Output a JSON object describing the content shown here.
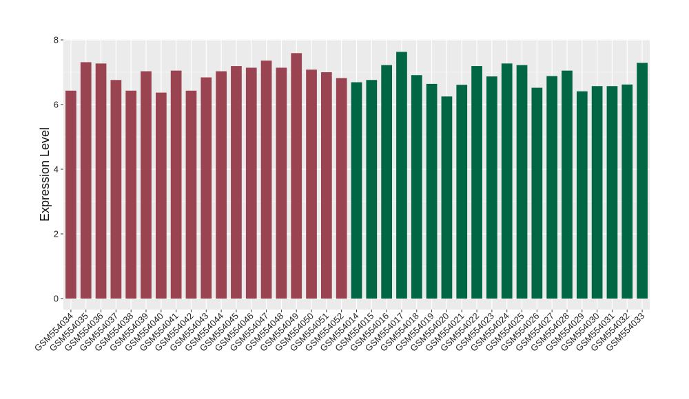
{
  "chart_data": {
    "type": "bar",
    "title": "",
    "xlabel": "",
    "ylabel": "Expression Level",
    "ylim": [
      0,
      8
    ],
    "yticks": [
      0,
      2,
      4,
      6,
      8
    ],
    "grid": true,
    "legend": "none",
    "background_color": "#ebebeb",
    "grid_color": "#ffffff",
    "categories": [
      "GSM554034",
      "GSM554035",
      "GSM554036",
      "GSM554037",
      "GSM554038",
      "GSM554039",
      "GSM554040",
      "GSM554041",
      "GSM554042",
      "GSM554043",
      "GSM554044",
      "GSM554045",
      "GSM554046",
      "GSM554047",
      "GSM554048",
      "GSM554049",
      "GSM554050",
      "GSM554051",
      "GSM554052",
      "GSM554014",
      "GSM554015",
      "GSM554016",
      "GSM554017",
      "GSM554018",
      "GSM554019",
      "GSM554020",
      "GSM554021",
      "GSM554022",
      "GSM554023",
      "GSM554024",
      "GSM554025",
      "GSM554026",
      "GSM554027",
      "GSM554028",
      "GSM554029",
      "GSM554030",
      "GSM554031",
      "GSM554032",
      "GSM554033"
    ],
    "values": [
      6.43,
      7.31,
      7.27,
      6.76,
      6.43,
      7.03,
      6.37,
      7.05,
      6.43,
      6.84,
      7.03,
      7.19,
      7.14,
      7.36,
      7.14,
      7.59,
      7.08,
      7.0,
      6.82,
      6.69,
      6.76,
      7.22,
      7.63,
      6.91,
      6.64,
      6.25,
      6.61,
      7.19,
      6.87,
      7.27,
      7.22,
      6.52,
      6.88,
      7.05,
      6.41,
      6.57,
      6.57,
      6.62,
      7.29
    ],
    "group_colors": [
      "#9b4451",
      "#9b4451",
      "#9b4451",
      "#9b4451",
      "#9b4451",
      "#9b4451",
      "#9b4451",
      "#9b4451",
      "#9b4451",
      "#9b4451",
      "#9b4451",
      "#9b4451",
      "#9b4451",
      "#9b4451",
      "#9b4451",
      "#9b4451",
      "#9b4451",
      "#9b4451",
      "#9b4451",
      "#006643",
      "#006643",
      "#006643",
      "#006643",
      "#006643",
      "#006643",
      "#006643",
      "#006643",
      "#006643",
      "#006643",
      "#006643",
      "#006643",
      "#006643",
      "#006643",
      "#006643",
      "#006643",
      "#006643",
      "#006643",
      "#006643",
      "#006643"
    ]
  }
}
